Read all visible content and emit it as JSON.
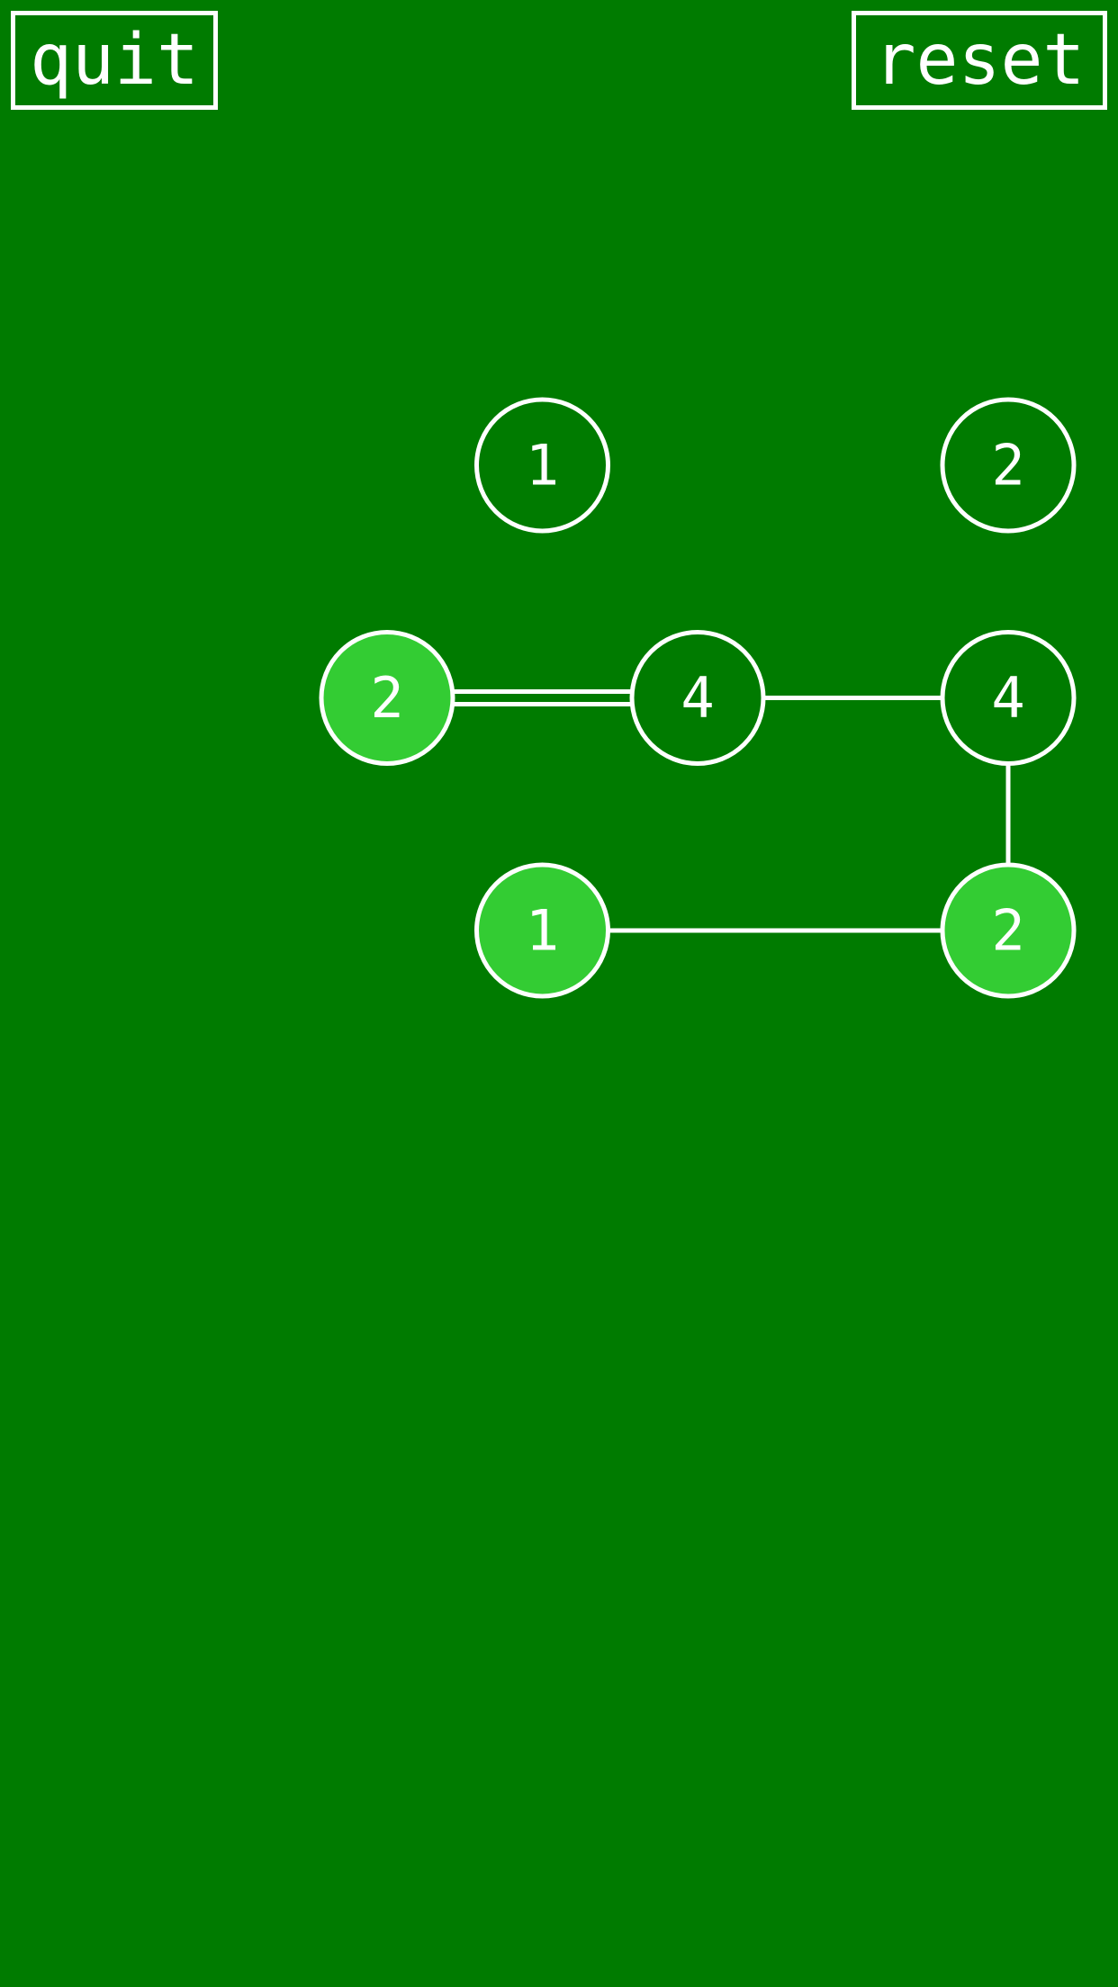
{
  "toolbar": {
    "quit_label": "quit",
    "reset_label": "reset"
  },
  "colors": {
    "background": "#007b00",
    "island_default": "#007b00",
    "island_complete": "#33cc33",
    "line": "#ffffff"
  },
  "board": {
    "islands": [
      {
        "id": "a",
        "row": 0,
        "col": 1,
        "value": "1",
        "complete": false
      },
      {
        "id": "b",
        "row": 0,
        "col": 4,
        "value": "2",
        "complete": false
      },
      {
        "id": "c",
        "row": 1,
        "col": 0,
        "value": "2",
        "complete": true
      },
      {
        "id": "d",
        "row": 1,
        "col": 2,
        "value": "4",
        "complete": false
      },
      {
        "id": "e",
        "row": 1,
        "col": 4,
        "value": "4",
        "complete": false
      },
      {
        "id": "f",
        "row": 2,
        "col": 1,
        "value": "1",
        "complete": true
      },
      {
        "id": "g",
        "row": 2,
        "col": 4,
        "value": "2",
        "complete": true
      }
    ],
    "bridges": [
      {
        "from": "c",
        "to": "d",
        "count": 2
      },
      {
        "from": "d",
        "to": "e",
        "count": 1
      },
      {
        "from": "e",
        "to": "g",
        "count": 1
      },
      {
        "from": "f",
        "to": "g",
        "count": 1
      }
    ]
  }
}
